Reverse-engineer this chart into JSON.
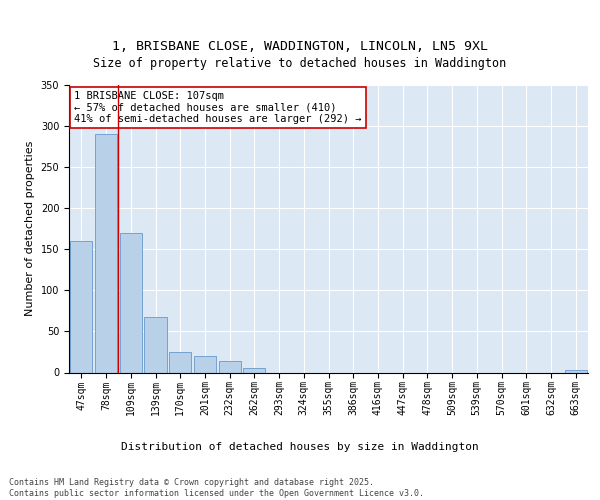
{
  "title_line1": "1, BRISBANE CLOSE, WADDINGTON, LINCOLN, LN5 9XL",
  "title_line2": "Size of property relative to detached houses in Waddington",
  "xlabel": "Distribution of detached houses by size in Waddington",
  "ylabel": "Number of detached properties",
  "categories": [
    "47sqm",
    "78sqm",
    "109sqm",
    "139sqm",
    "170sqm",
    "201sqm",
    "232sqm",
    "262sqm",
    "293sqm",
    "324sqm",
    "355sqm",
    "386sqm",
    "416sqm",
    "447sqm",
    "478sqm",
    "509sqm",
    "539sqm",
    "570sqm",
    "601sqm",
    "632sqm",
    "663sqm"
  ],
  "values": [
    160,
    290,
    170,
    67,
    25,
    20,
    14,
    5,
    0,
    0,
    0,
    0,
    0,
    0,
    0,
    0,
    0,
    0,
    0,
    0,
    3
  ],
  "bar_color": "#b8d0e8",
  "bar_edge_color": "#6699cc",
  "vline_color": "#cc0000",
  "annotation_text": "1 BRISBANE CLOSE: 107sqm\n← 57% of detached houses are smaller (410)\n41% of semi-detached houses are larger (292) →",
  "annotation_box_color": "#ffffff",
  "annotation_box_edge": "#cc0000",
  "ylim": [
    0,
    350
  ],
  "yticks": [
    0,
    50,
    100,
    150,
    200,
    250,
    300,
    350
  ],
  "background_color": "#dce9f5",
  "footer_text": "Contains HM Land Registry data © Crown copyright and database right 2025.\nContains public sector information licensed under the Open Government Licence v3.0.",
  "title_fontsize": 9.5,
  "subtitle_fontsize": 8.5,
  "axis_label_fontsize": 8,
  "tick_fontsize": 7,
  "annotation_fontsize": 7.5
}
